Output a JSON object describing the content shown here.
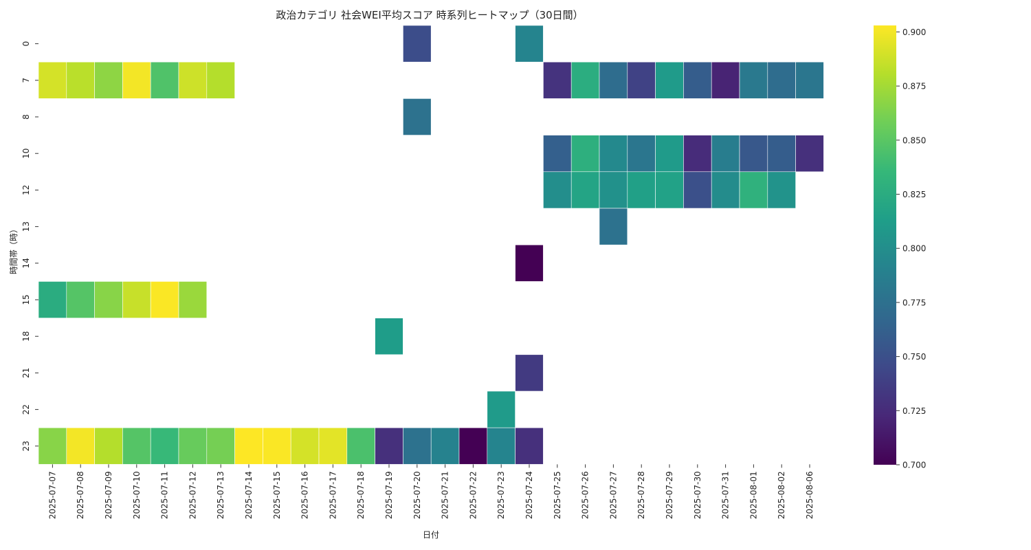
{
  "chart_data": {
    "type": "heatmap",
    "title": "政治カテゴリ 社会WEI平均スコア 時系列ヒートマップ（30日間）",
    "xlabel": "日付",
    "ylabel": "時間帯（時）",
    "x_categories": [
      "2025-07-07",
      "2025-07-08",
      "2025-07-09",
      "2025-07-10",
      "2025-07-11",
      "2025-07-12",
      "2025-07-13",
      "2025-07-14",
      "2025-07-15",
      "2025-07-16",
      "2025-07-17",
      "2025-07-18",
      "2025-07-19",
      "2025-07-20",
      "2025-07-21",
      "2025-07-22",
      "2025-07-23",
      "2025-07-24",
      "2025-07-25",
      "2025-07-26",
      "2025-07-27",
      "2025-07-28",
      "2025-07-29",
      "2025-07-30",
      "2025-07-31",
      "2025-08-01",
      "2025-08-02",
      "2025-08-06"
    ],
    "y_categories": [
      "0",
      "7",
      "8",
      "10",
      "12",
      "13",
      "14",
      "15",
      "18",
      "21",
      "22",
      "23"
    ],
    "values": [
      [
        null,
        null,
        null,
        null,
        null,
        null,
        null,
        null,
        null,
        null,
        null,
        null,
        null,
        0.748,
        null,
        null,
        null,
        0.792,
        null,
        null,
        null,
        null,
        null,
        null,
        null,
        null,
        null,
        null
      ],
      [
        0.89,
        0.882,
        0.868,
        0.9,
        0.846,
        0.888,
        0.88,
        null,
        null,
        null,
        null,
        null,
        null,
        null,
        null,
        null,
        null,
        null,
        0.73,
        0.826,
        0.772,
        0.74,
        0.81,
        0.76,
        0.72,
        0.782,
        0.772,
        0.78
      ],
      [
        null,
        null,
        null,
        null,
        null,
        null,
        null,
        null,
        null,
        null,
        null,
        null,
        null,
        0.776,
        null,
        null,
        null,
        null,
        null,
        null,
        null,
        null,
        null,
        null,
        null,
        null,
        null,
        null
      ],
      [
        null,
        null,
        null,
        null,
        null,
        null,
        null,
        null,
        null,
        null,
        null,
        null,
        null,
        null,
        null,
        null,
        null,
        null,
        0.762,
        0.828,
        0.796,
        0.78,
        0.81,
        0.725,
        0.786,
        0.756,
        0.76,
        0.728
      ],
      [
        null,
        null,
        null,
        null,
        null,
        null,
        null,
        null,
        null,
        null,
        null,
        null,
        null,
        null,
        null,
        null,
        null,
        null,
        0.8,
        0.818,
        0.802,
        0.815,
        0.816,
        0.75,
        0.798,
        0.83,
        0.804,
        null
      ],
      [
        null,
        null,
        null,
        null,
        null,
        null,
        null,
        null,
        null,
        null,
        null,
        null,
        null,
        null,
        null,
        null,
        null,
        null,
        null,
        null,
        0.776,
        null,
        null,
        null,
        null,
        null,
        null,
        null
      ],
      [
        null,
        null,
        null,
        null,
        null,
        null,
        null,
        null,
        null,
        null,
        null,
        null,
        null,
        null,
        null,
        null,
        null,
        0.7,
        null,
        null,
        null,
        null,
        null,
        null,
        null,
        null,
        null,
        null
      ],
      [
        0.825,
        0.848,
        0.866,
        0.886,
        0.902,
        0.872,
        null,
        null,
        null,
        null,
        null,
        null,
        null,
        null,
        null,
        null,
        null,
        null,
        null,
        null,
        null,
        null,
        null,
        null,
        null,
        null,
        null,
        null
      ],
      [
        null,
        null,
        null,
        null,
        null,
        null,
        null,
        null,
        null,
        null,
        null,
        null,
        0.812,
        null,
        null,
        null,
        null,
        null,
        null,
        null,
        null,
        null,
        null,
        null,
        null,
        null,
        null,
        null
      ],
      [
        null,
        null,
        null,
        null,
        null,
        null,
        null,
        null,
        null,
        null,
        null,
        null,
        null,
        null,
        null,
        null,
        null,
        0.735,
        null,
        null,
        null,
        null,
        null,
        null,
        null,
        null,
        null,
        null
      ],
      [
        null,
        null,
        null,
        null,
        null,
        null,
        null,
        null,
        null,
        null,
        null,
        null,
        null,
        null,
        null,
        null,
        0.81,
        null,
        null,
        null,
        null,
        null,
        null,
        null,
        null,
        null,
        null,
        null
      ],
      [
        0.866,
        0.9,
        0.88,
        0.848,
        0.836,
        0.855,
        0.86,
        0.903,
        0.902,
        0.89,
        0.895,
        0.844,
        0.728,
        0.776,
        0.79,
        0.7,
        0.792,
        0.728,
        null,
        null,
        null,
        null,
        null,
        null,
        null,
        null,
        null,
        null
      ]
    ],
    "colorbar": {
      "min": 0.7,
      "max": 0.903,
      "ticks": [
        "0.700",
        "0.725",
        "0.750",
        "0.775",
        "0.800",
        "0.825",
        "0.850",
        "0.875",
        "0.900"
      ],
      "colormap": "viridis"
    },
    "grid": false,
    "legend": "colorbar-right"
  },
  "colors": {
    "viridis": [
      "#440154",
      "#482878",
      "#3e4989",
      "#31688e",
      "#26828e",
      "#1f9e89",
      "#35b779",
      "#6ece58",
      "#b5de2b",
      "#fde725"
    ],
    "background": "#ffffff",
    "cell_border": "#ffffff"
  }
}
